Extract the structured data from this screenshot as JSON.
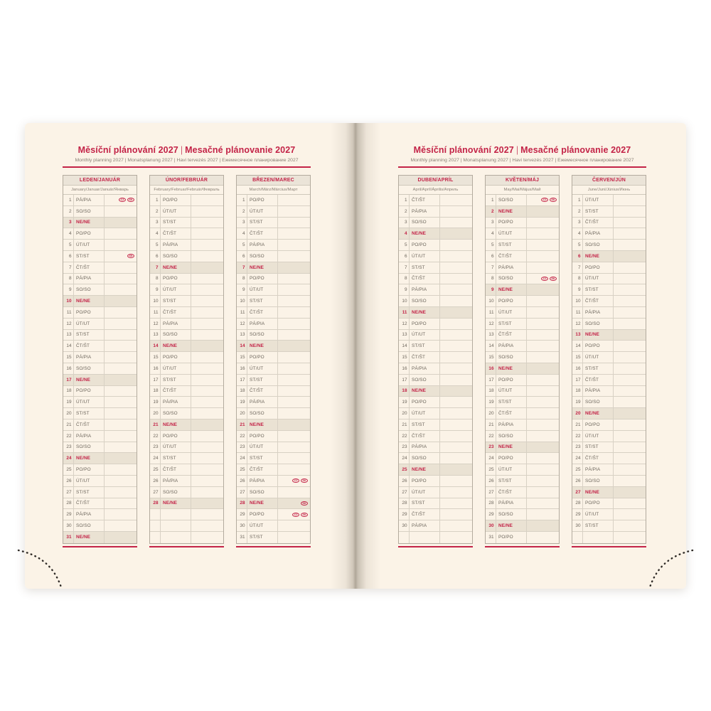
{
  "book": {
    "title_cz": "Měsíční plánování 2027",
    "title_separator": "|",
    "title_sk": "Mesačné plánovanie 2027",
    "subtitle": "Monthly planning 2027 | Monatsplanung 2027 | Havi tervezés 2027 | Ежемесячное планирование 2027",
    "accent_color": "#c32347",
    "page_color": "#fbf3e7",
    "holiday_badge_labels": [
      "CZ",
      "SK"
    ]
  },
  "weekday_labels": {
    "monday": "PO/PO",
    "tuesday": "ÚT/UT",
    "wednesday": "ST/ST",
    "thursday": "ČT/ŠT",
    "friday": "PÁ/PIA",
    "saturday": "SO/SO",
    "sunday": "NE/NE"
  },
  "rows_per_table": 31,
  "pages": [
    {
      "side": "left",
      "months": [
        {
          "name": "LEDEN/JANUÁR",
          "subtitle": "January/Januar/Január/Январь",
          "days": [
            [
              1,
              "PÁ/PIA",
              [
                "CZ",
                "SK"
              ]
            ],
            [
              2,
              "SO/SO"
            ],
            [
              3,
              "NE/NE"
            ],
            [
              4,
              "PO/PO"
            ],
            [
              5,
              "ÚT/UT"
            ],
            [
              6,
              "ST/ST",
              [
                "SK"
              ]
            ],
            [
              7,
              "ČT/ŠT"
            ],
            [
              8,
              "PÁ/PIA"
            ],
            [
              9,
              "SO/SO"
            ],
            [
              10,
              "NE/NE"
            ],
            [
              11,
              "PO/PO"
            ],
            [
              12,
              "ÚT/UT"
            ],
            [
              13,
              "ST/ST"
            ],
            [
              14,
              "ČT/ŠT"
            ],
            [
              15,
              "PÁ/PIA"
            ],
            [
              16,
              "SO/SO"
            ],
            [
              17,
              "NE/NE"
            ],
            [
              18,
              "PO/PO"
            ],
            [
              19,
              "ÚT/UT"
            ],
            [
              20,
              "ST/ST"
            ],
            [
              21,
              "ČT/ŠT"
            ],
            [
              22,
              "PÁ/PIA"
            ],
            [
              23,
              "SO/SO"
            ],
            [
              24,
              "NE/NE"
            ],
            [
              25,
              "PO/PO"
            ],
            [
              26,
              "ÚT/UT"
            ],
            [
              27,
              "ST/ST"
            ],
            [
              28,
              "ČT/ŠT"
            ],
            [
              29,
              "PÁ/PIA"
            ],
            [
              30,
              "SO/SO"
            ],
            [
              31,
              "NE/NE"
            ]
          ]
        },
        {
          "name": "ÚNOR/FEBRUÁR",
          "subtitle": "February/Februar/Február/Февраль",
          "days": [
            [
              1,
              "PO/PO"
            ],
            [
              2,
              "ÚT/UT"
            ],
            [
              3,
              "ST/ST"
            ],
            [
              4,
              "ČT/ŠT"
            ],
            [
              5,
              "PÁ/PIA"
            ],
            [
              6,
              "SO/SO"
            ],
            [
              7,
              "NE/NE"
            ],
            [
              8,
              "PO/PO"
            ],
            [
              9,
              "ÚT/UT"
            ],
            [
              10,
              "ST/ST"
            ],
            [
              11,
              "ČT/ŠT"
            ],
            [
              12,
              "PÁ/PIA"
            ],
            [
              13,
              "SO/SO"
            ],
            [
              14,
              "NE/NE"
            ],
            [
              15,
              "PO/PO"
            ],
            [
              16,
              "ÚT/UT"
            ],
            [
              17,
              "ST/ST"
            ],
            [
              18,
              "ČT/ŠT"
            ],
            [
              19,
              "PÁ/PIA"
            ],
            [
              20,
              "SO/SO"
            ],
            [
              21,
              "NE/NE"
            ],
            [
              22,
              "PO/PO"
            ],
            [
              23,
              "ÚT/UT"
            ],
            [
              24,
              "ST/ST"
            ],
            [
              25,
              "ČT/ŠT"
            ],
            [
              26,
              "PÁ/PIA"
            ],
            [
              27,
              "SO/SO"
            ],
            [
              28,
              "NE/NE"
            ]
          ]
        },
        {
          "name": "BŘEZEN/MAREC",
          "subtitle": "March/März/Március/Март",
          "days": [
            [
              1,
              "PO/PO"
            ],
            [
              2,
              "ÚT/UT"
            ],
            [
              3,
              "ST/ST"
            ],
            [
              4,
              "ČT/ŠT"
            ],
            [
              5,
              "PÁ/PIA"
            ],
            [
              6,
              "SO/SO"
            ],
            [
              7,
              "NE/NE"
            ],
            [
              8,
              "PO/PO"
            ],
            [
              9,
              "ÚT/UT"
            ],
            [
              10,
              "ST/ST"
            ],
            [
              11,
              "ČT/ŠT"
            ],
            [
              12,
              "PÁ/PIA"
            ],
            [
              13,
              "SO/SO"
            ],
            [
              14,
              "NE/NE"
            ],
            [
              15,
              "PO/PO"
            ],
            [
              16,
              "ÚT/UT"
            ],
            [
              17,
              "ST/ST"
            ],
            [
              18,
              "ČT/ŠT"
            ],
            [
              19,
              "PÁ/PIA"
            ],
            [
              20,
              "SO/SO"
            ],
            [
              21,
              "NE/NE"
            ],
            [
              22,
              "PO/PO"
            ],
            [
              23,
              "ÚT/UT"
            ],
            [
              24,
              "ST/ST"
            ],
            [
              25,
              "ČT/ŠT"
            ],
            [
              26,
              "PÁ/PIA",
              [
                "CZ",
                "SK"
              ]
            ],
            [
              27,
              "SO/SO"
            ],
            [
              28,
              "NE/NE",
              [
                "SK"
              ]
            ],
            [
              29,
              "PO/PO",
              [
                "CZ",
                "SK"
              ]
            ],
            [
              30,
              "ÚT/UT"
            ],
            [
              31,
              "ST/ST"
            ]
          ]
        }
      ]
    },
    {
      "side": "right",
      "months": [
        {
          "name": "DUBEN/APRÍL",
          "subtitle": "April/Apríl/Április/Апрель",
          "days": [
            [
              1,
              "ČT/ŠT"
            ],
            [
              2,
              "PÁ/PIA"
            ],
            [
              3,
              "SO/SO"
            ],
            [
              4,
              "NE/NE"
            ],
            [
              5,
              "PO/PO"
            ],
            [
              6,
              "ÚT/UT"
            ],
            [
              7,
              "ST/ST"
            ],
            [
              8,
              "ČT/ŠT"
            ],
            [
              9,
              "PÁ/PIA"
            ],
            [
              10,
              "SO/SO"
            ],
            [
              11,
              "NE/NE"
            ],
            [
              12,
              "PO/PO"
            ],
            [
              13,
              "ÚT/UT"
            ],
            [
              14,
              "ST/ST"
            ],
            [
              15,
              "ČT/ŠT"
            ],
            [
              16,
              "PÁ/PIA"
            ],
            [
              17,
              "SO/SO"
            ],
            [
              18,
              "NE/NE"
            ],
            [
              19,
              "PO/PO"
            ],
            [
              20,
              "ÚT/UT"
            ],
            [
              21,
              "ST/ST"
            ],
            [
              22,
              "ČT/ŠT"
            ],
            [
              23,
              "PÁ/PIA"
            ],
            [
              24,
              "SO/SO"
            ],
            [
              25,
              "NE/NE"
            ],
            [
              26,
              "PO/PO"
            ],
            [
              27,
              "ÚT/UT"
            ],
            [
              28,
              "ST/ST"
            ],
            [
              29,
              "ČT/ŠT"
            ],
            [
              30,
              "PÁ/PIA"
            ]
          ]
        },
        {
          "name": "KVĚTEN/MÁJ",
          "subtitle": "May/Mai/Május/Май",
          "days": [
            [
              1,
              "SO/SO",
              [
                "CZ",
                "SK"
              ]
            ],
            [
              2,
              "NE/NE"
            ],
            [
              3,
              "PO/PO"
            ],
            [
              4,
              "ÚT/UT"
            ],
            [
              5,
              "ST/ST"
            ],
            [
              6,
              "ČT/ŠT"
            ],
            [
              7,
              "PÁ/PIA"
            ],
            [
              8,
              "SO/SO",
              [
                "CZ",
                "SK"
              ]
            ],
            [
              9,
              "NE/NE"
            ],
            [
              10,
              "PO/PO"
            ],
            [
              11,
              "ÚT/UT"
            ],
            [
              12,
              "ST/ST"
            ],
            [
              13,
              "ČT/ŠT"
            ],
            [
              14,
              "PÁ/PIA"
            ],
            [
              15,
              "SO/SO"
            ],
            [
              16,
              "NE/NE"
            ],
            [
              17,
              "PO/PO"
            ],
            [
              18,
              "ÚT/UT"
            ],
            [
              19,
              "ST/ST"
            ],
            [
              20,
              "ČT/ŠT"
            ],
            [
              21,
              "PÁ/PIA"
            ],
            [
              22,
              "SO/SO"
            ],
            [
              23,
              "NE/NE"
            ],
            [
              24,
              "PO/PO"
            ],
            [
              25,
              "ÚT/UT"
            ],
            [
              26,
              "ST/ST"
            ],
            [
              27,
              "ČT/ŠT"
            ],
            [
              28,
              "PÁ/PIA"
            ],
            [
              29,
              "SO/SO"
            ],
            [
              30,
              "NE/NE"
            ],
            [
              31,
              "PO/PO"
            ]
          ]
        },
        {
          "name": "ČERVEN/JÚN",
          "subtitle": "June/Juni/Június/Июнь",
          "days": [
            [
              1,
              "ÚT/UT"
            ],
            [
              2,
              "ST/ST"
            ],
            [
              3,
              "ČT/ŠT"
            ],
            [
              4,
              "PÁ/PIA"
            ],
            [
              5,
              "SO/SO"
            ],
            [
              6,
              "NE/NE"
            ],
            [
              7,
              "PO/PO"
            ],
            [
              8,
              "ÚT/UT"
            ],
            [
              9,
              "ST/ST"
            ],
            [
              10,
              "ČT/ŠT"
            ],
            [
              11,
              "PÁ/PIA"
            ],
            [
              12,
              "SO/SO"
            ],
            [
              13,
              "NE/NE"
            ],
            [
              14,
              "PO/PO"
            ],
            [
              15,
              "ÚT/UT"
            ],
            [
              16,
              "ST/ST"
            ],
            [
              17,
              "ČT/ŠT"
            ],
            [
              18,
              "PÁ/PIA"
            ],
            [
              19,
              "SO/SO"
            ],
            [
              20,
              "NE/NE"
            ],
            [
              21,
              "PO/PO"
            ],
            [
              22,
              "ÚT/UT"
            ],
            [
              23,
              "ST/ST"
            ],
            [
              24,
              "ČT/ŠT"
            ],
            [
              25,
              "PÁ/PIA"
            ],
            [
              26,
              "SO/SO"
            ],
            [
              27,
              "NE/NE"
            ],
            [
              28,
              "PO/PO"
            ],
            [
              29,
              "ÚT/UT"
            ],
            [
              30,
              "ST/ST"
            ]
          ]
        }
      ]
    }
  ]
}
